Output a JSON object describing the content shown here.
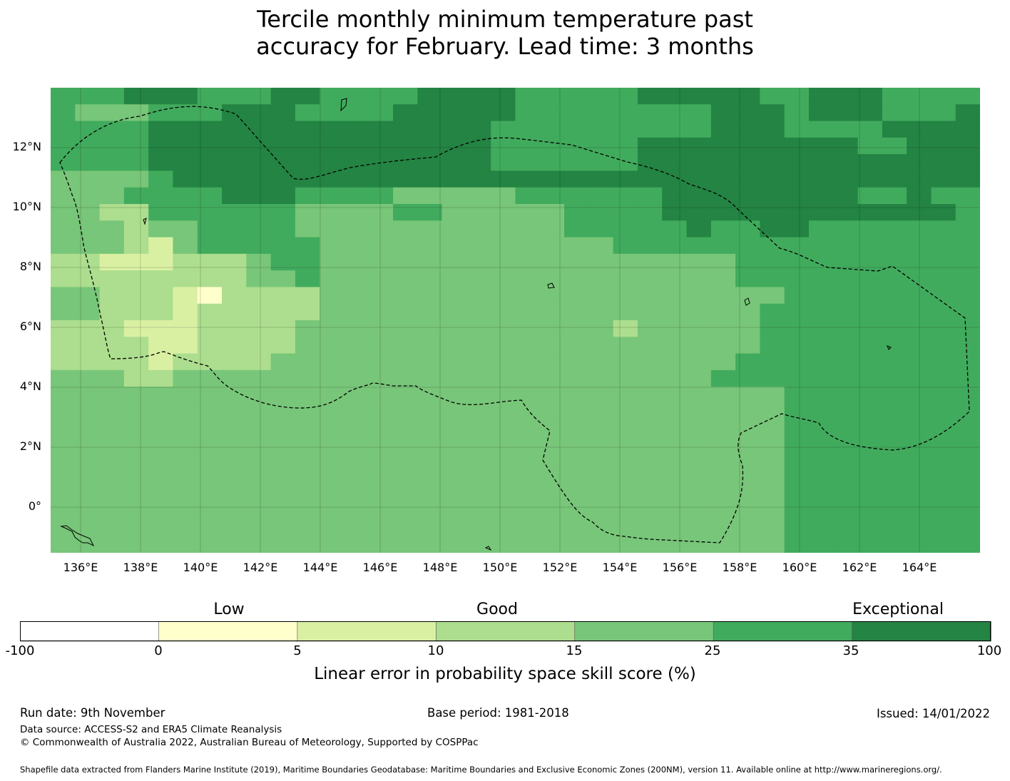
{
  "title_line1": "Tercile monthly minimum temperature past",
  "title_line2": "accuracy for February. Lead time: 3 months",
  "map": {
    "lat_ticks": [
      "12°N",
      "10°N",
      "8°N",
      "6°N",
      "4°N",
      "2°N",
      "0°"
    ],
    "lon_ticks": [
      "136°E",
      "138°E",
      "140°E",
      "142°E",
      "144°E",
      "146°E",
      "148°E",
      "150°E",
      "152°E",
      "154°E",
      "156°E",
      "158°E",
      "160°E",
      "162°E",
      "164°E"
    ],
    "grid_rows": [
      "55566655566555566665555566666556665555",
      "54445556665555666665555555566656665556",
      "55556666666666666655555555566655556666",
      "55556666666666666655555566666666655666",
      "55556666666666666655555566666666666666",
      "44445666666666666666666666666666666666",
      "44455556665555444445555556666666655655",
      "44335555554444554444455556666666666665",
      "44434455554444444444455555655665555555",
      "44432455555444444444444555555555555555",
      "33222333455444444444444444445555555555",
      "33333333445444444444444444445555555555",
      "44333213333444444444444444444455555555",
      "44333233333444444444444444444555555555",
      "33322233334444444444444344444555555555",
      "33332233334444444444444444444555555555",
      "33332333344444444444444444445555555555",
      "44433444444444444444444444455555555555",
      "44444444444444444444444444444455555555",
      "44444444444444444444444444444455555555",
      "44444444444444444444444444444455555555",
      "44444444444444444444444444444455555555",
      "44444444444444444444444444444455555555",
      "44444444444444444444444444444455555555",
      "44444444444444444444444444444455555555",
      "44444444444444444444444444444455555555",
      "44444444444444444444444444444455555555",
      "44444444444444444444444444444455555555"
    ]
  },
  "colorbar": {
    "bins": [
      {
        "from": "-100",
        "to": "0",
        "color": "#ffffff"
      },
      {
        "from": "0",
        "to": "5",
        "color": "#ffffcc"
      },
      {
        "from": "5",
        "to": "10",
        "color": "#d9f0a3"
      },
      {
        "from": "10",
        "to": "15",
        "color": "#addd8e"
      },
      {
        "from": "15",
        "to": "25",
        "color": "#78c679"
      },
      {
        "from": "25",
        "to": "35",
        "color": "#41ab5d"
      },
      {
        "from": "35",
        "to": "100",
        "color": "#238443"
      }
    ],
    "tick_labels": [
      "-100",
      "0",
      "5",
      "10",
      "15",
      "25",
      "35",
      "100"
    ],
    "category_low": "Low",
    "category_good": "Good",
    "category_exceptional": "Exceptional",
    "axis_title": "Linear error in probability space skill score (%)"
  },
  "footer": {
    "run_date": "Run date: 9th November",
    "base_period": "Base period: 1981-2018",
    "issued": "Issued: 14/01/2022",
    "data_source": "Data source: ACCESS-S2 and ERA5 Climate Reanalysis",
    "copyright": "© Commonwealth of Australia 2022, Australian Bureau of Meteorology, Supported by COSPPac",
    "shapefile": "Shapefile data extracted from Flanders Marine Institute (2019), Maritime Boundaries Geodatabase: Maritime Boundaries and Exclusive Economic Zones (200NM), version 11. Available online at http://www.marineregions.org/."
  }
}
